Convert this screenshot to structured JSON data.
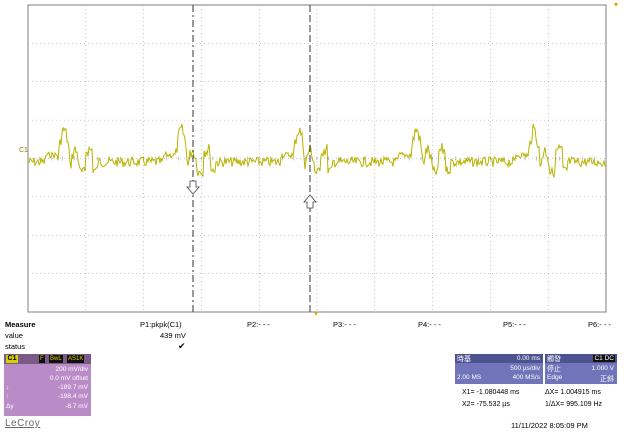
{
  "channel_marker": "C1",
  "measure": {
    "title": "Measure",
    "row_labels": [
      "value",
      "status"
    ],
    "p1": {
      "name": "P1:pkpk(C1)",
      "value": "439 mV",
      "status": "✔"
    },
    "p2": "P2:- - -",
    "p3": "P3:- - -",
    "p4": "P4:- - -",
    "p5": "P5:- - -",
    "p6": "P6:- - -"
  },
  "channel_box": {
    "label": "C1",
    "tags": [
      "F",
      "BwL",
      "AS1K"
    ],
    "vdiv": "200 mV/div",
    "offset": "0.0 mV offset",
    "line1_sym": "↓",
    "line1_val": "-189.7 mV",
    "line2_sym": "↑",
    "line2_val": "-198.4 mV",
    "line3_sym": "Δy",
    "line3_val": "-8.7 mV"
  },
  "timebase": {
    "title": "時基",
    "delay": "0.00 ms",
    "tdiv": "500 µs/div",
    "samples": "2.00 MS",
    "rate": "400 MS/s"
  },
  "trigger": {
    "title": "觸發",
    "channel": "C1 DC",
    "mode": "停止",
    "level": "1.000 V",
    "type": "Edge",
    "slope": "正斜"
  },
  "cursors": {
    "x1": "X1=  -1.080448 ms",
    "dx": "ΔX=  1.004915 ms",
    "x2": "X2=    -75.532 µs",
    "inv_dx": "1/ΔX=  995.109 Hz"
  },
  "brand": "LeCroy",
  "timestamp": "11/11/2022 8:05:09 PM",
  "colors": {
    "trace": "#b8b400",
    "c1": "#b98cc8",
    "timebase": "#6f75b8"
  }
}
